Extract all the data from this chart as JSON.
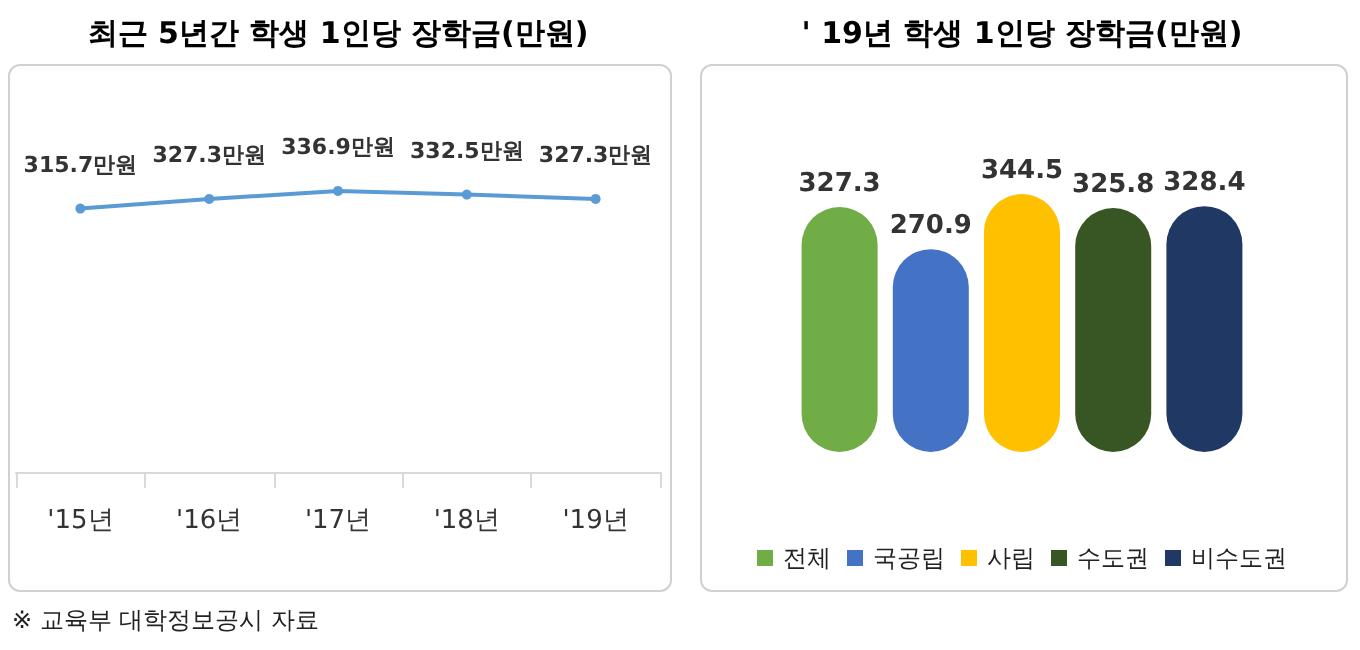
{
  "chart_data": [
    {
      "type": "line",
      "title": "최근 5년간 학생 1인당 장학금(만원)",
      "categories": [
        "'15년",
        "'16년",
        "'17년",
        "'18년",
        "'19년"
      ],
      "series": [
        {
          "color": "#5b9bd5",
          "values": [
            315.7,
            327.3,
            336.9,
            332.5,
            327.3
          ],
          "value_labels": [
            "315.7만원",
            "327.3만원",
            "336.9만원",
            "332.5만원",
            "327.3만원"
          ]
        }
      ],
      "marker": "circle",
      "line_style": "solid",
      "grid": false,
      "legend": false,
      "annotations": [
        "※ 교육부 대학정보공시 자료"
      ]
    },
    {
      "type": "bar",
      "title": "' 19년 학생 1인당 장학금(만원)",
      "categories": [
        null
      ],
      "series": [
        {
          "name": "전체",
          "color": "#70ad47",
          "values": [
            327.3
          ]
        },
        {
          "name": "국공립",
          "color": "#4472c4",
          "values": [
            270.9
          ]
        },
        {
          "name": "사립",
          "color": "#ffc000",
          "values": [
            344.5
          ]
        },
        {
          "name": "수도권",
          "color": "#375623",
          "values": [
            325.8
          ]
        },
        {
          "name": "비수도권",
          "color": "#1f3864",
          "values": [
            328.4
          ]
        }
      ],
      "data_labels": true,
      "grid": false,
      "legend": "bottom"
    }
  ]
}
